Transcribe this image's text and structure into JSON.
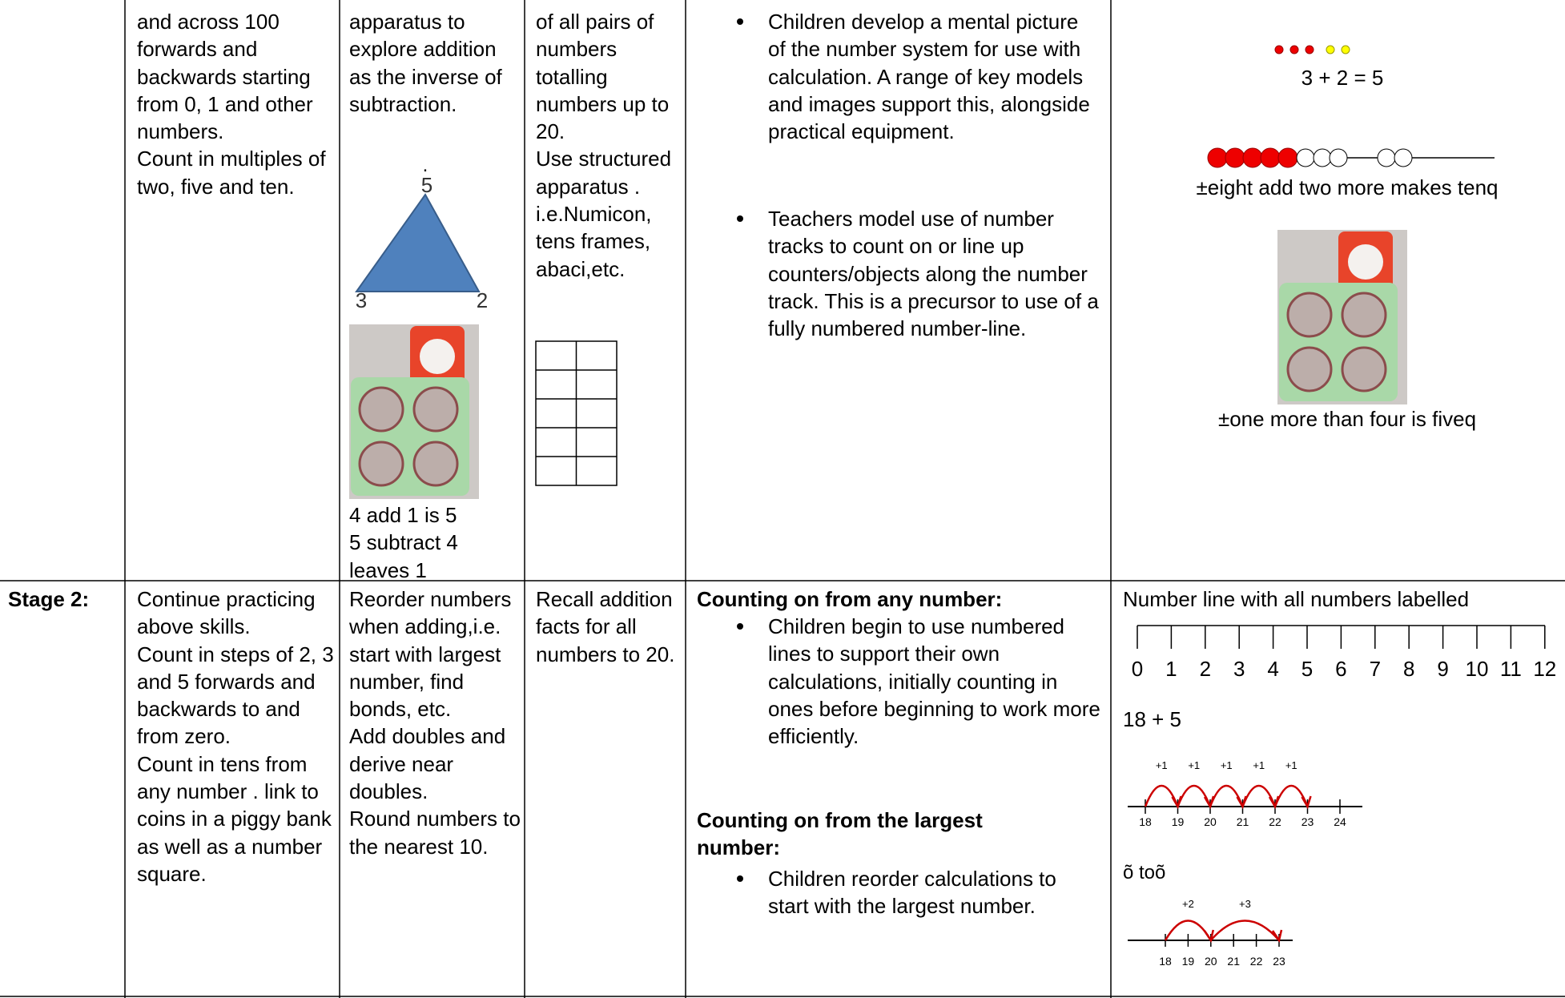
{
  "rows": [
    {
      "col1": {
        "paragraphs": [
          "and across 100 forwards and backwards starting from 0, 1 and other numbers.",
          "Count in multiples of two, five and ten."
        ]
      },
      "col2": {
        "paragraphs": [
          "apparatus to explore addition as the inverse of subtraction."
        ],
        "triangle": {
          "dot": ".",
          "top": "5",
          "left": "3",
          "right": "2"
        },
        "caption": [
          "4 add 1 is 5",
          "5 subtract 4 leaves 1"
        ]
      },
      "col3": {
        "paragraphs": [
          "of all pairs of numbers totalling numbers up to 20.",
          "Use structured apparatus . i.e.Numicon, tens frames, abaci,etc."
        ]
      },
      "col4": {
        "bullets": [
          "Children develop a mental picture of the number system for use with calculation. A range of key models and images support this, alongside practical equipment.",
          "Teachers model use of number tracks to count on or line up counters/objects along the number track. This is a precursor to use of a fully numbered number-line."
        ]
      },
      "col5": {
        "equation": "3 + 2 = 5",
        "bead_caption": "±eight add two more makes tenq",
        "photo_caption": "±one more than four is fiveq"
      }
    },
    {
      "stage": "Stage 2:",
      "col1": {
        "paragraphs": [
          "Continue practicing above skills.",
          "Count in steps of 2, 3 and 5 forwards and backwards to and from zero.",
          "Count in tens from any number .  link to coins in a piggy bank as well as a number square."
        ]
      },
      "col2": {
        "paragraphs": [
          "Reorder numbers when adding,i.e. start with largest number, find bonds, etc.",
          "Add doubles and derive near doubles.",
          "Round numbers to the nearest 10."
        ]
      },
      "col3": {
        "paragraphs": [
          "Recall addition facts for all numbers to 20."
        ]
      },
      "col4": {
        "heading1": "Counting on from any number:",
        "bullet1": "Children begin to use numbered lines to support their own calculations, initially counting in ones before beginning to work more efficiently.",
        "heading2": "Counting on from the largest number:",
        "bullet2": "Children reorder calculations to start with the largest number."
      },
      "col5": {
        "title": "Number line with all numbers labelled",
        "number_line": [
          0,
          1,
          2,
          3,
          4,
          5,
          6,
          7,
          8,
          9,
          10,
          11,
          12
        ],
        "sum": "18 + 5",
        "jumps": [
          "+1",
          "+1",
          "+1",
          "+1",
          "+1"
        ],
        "line_numbers": [
          18,
          19,
          20,
          21,
          22,
          23,
          24
        ],
        "note": "õ  toõ",
        "big_jumps": [
          "+2",
          "+3"
        ],
        "big_line_numbers": [
          18,
          19,
          20,
          21,
          22,
          23
        ]
      }
    }
  ]
}
